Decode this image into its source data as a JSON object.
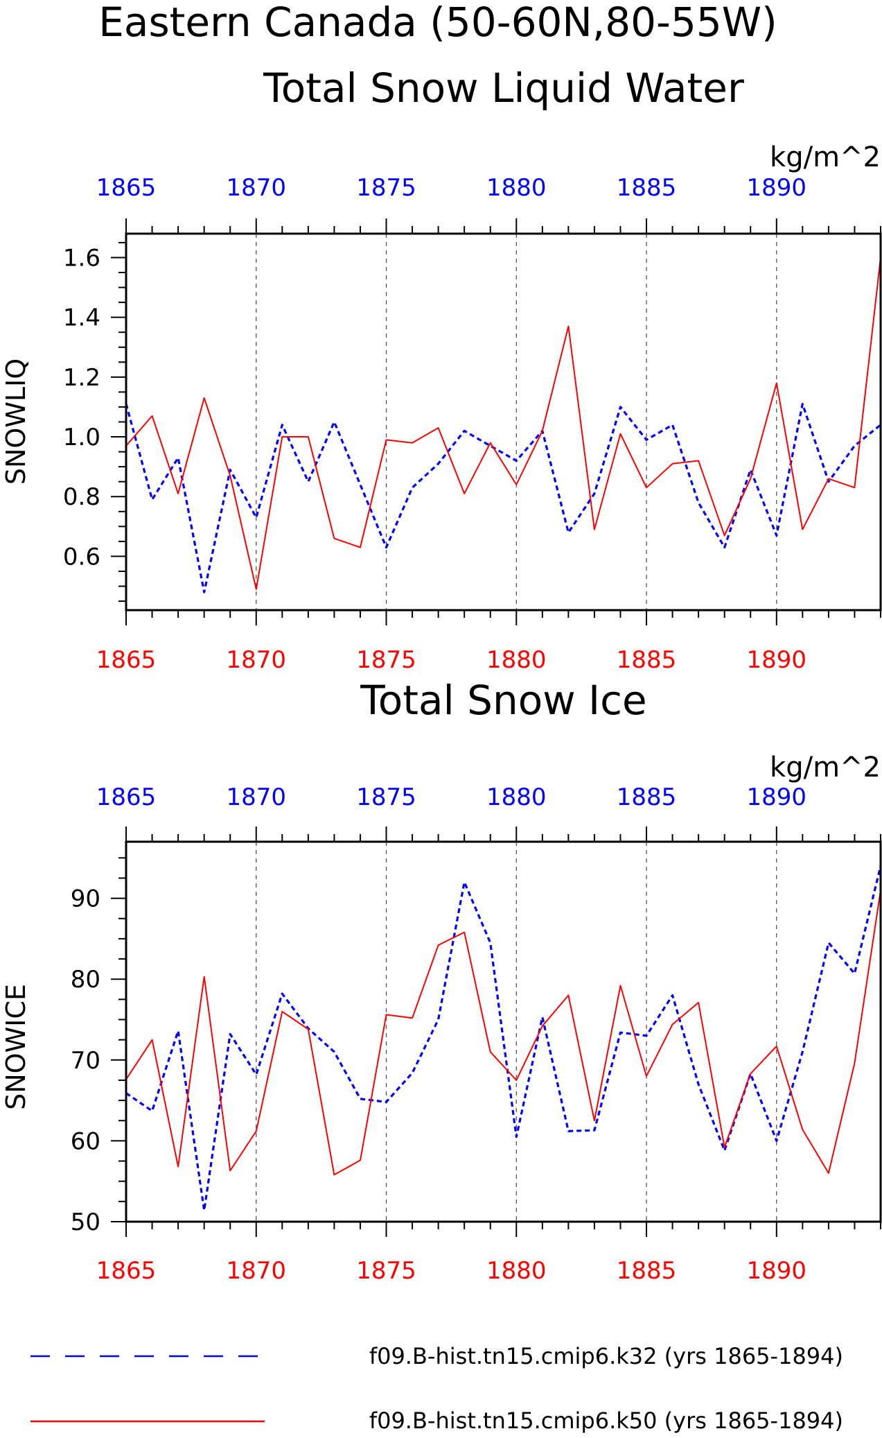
{
  "title": {
    "line1": "Eastern Canada (50-60N,80-55W)",
    "line2": "Total Snow Liquid Water"
  },
  "colors": {
    "k32": "#0000ff",
    "k50": "#ff0000",
    "axis": "#000000",
    "grid": "#555555"
  },
  "legend": [
    {
      "label": "f09.B-hist.tn15.cmip6.k32 (yrs 1865-1894)",
      "style": "dashed",
      "color": "#0000ff"
    },
    {
      "label": "f09.B-hist.tn15.cmip6.k50 (yrs 1865-1894)",
      "style": "solid",
      "color": "#ff0000"
    }
  ],
  "chart_data": [
    {
      "type": "line",
      "title": "",
      "ylabel": "SNOWLIQ",
      "units": "kg/m^2",
      "xlim": [
        1865,
        1894
      ],
      "ylim": [
        0.42,
        1.68
      ],
      "x_ticks": [
        1865,
        1870,
        1875,
        1880,
        1885,
        1890
      ],
      "y_ticks": [
        0.6,
        0.8,
        1.0,
        1.2,
        1.4,
        1.6
      ],
      "y_tick_labels": [
        "0.6",
        "0.8",
        "1.0",
        "1.2",
        "1.4",
        "1.6"
      ],
      "grid": "vertical dashed at major x ticks",
      "x": [
        1865,
        1866,
        1867,
        1868,
        1869,
        1870,
        1871,
        1872,
        1873,
        1874,
        1875,
        1876,
        1877,
        1878,
        1879,
        1880,
        1881,
        1882,
        1883,
        1884,
        1885,
        1886,
        1887,
        1888,
        1889,
        1890,
        1891,
        1892,
        1893,
        1894
      ],
      "series": [
        {
          "name": "f09.B-hist.tn15.cmip6.k32",
          "color": "#0000ff",
          "style": "dashed",
          "values": [
            1.11,
            0.79,
            0.93,
            0.48,
            0.89,
            0.73,
            1.04,
            0.85,
            1.05,
            0.84,
            0.63,
            0.83,
            0.91,
            1.02,
            0.97,
            0.92,
            1.02,
            0.68,
            0.81,
            1.1,
            0.99,
            1.04,
            0.78,
            0.63,
            0.89,
            0.67,
            1.11,
            0.85,
            0.97,
            1.04
          ]
        },
        {
          "name": "f09.B-hist.tn15.cmip6.k50",
          "color": "#ff0000",
          "style": "solid",
          "values": [
            0.97,
            1.07,
            0.81,
            1.13,
            0.87,
            0.49,
            1.0,
            1.0,
            0.66,
            0.63,
            0.99,
            0.98,
            1.03,
            0.81,
            0.98,
            0.84,
            1.02,
            1.37,
            0.69,
            1.01,
            0.83,
            0.91,
            0.92,
            0.67,
            0.86,
            1.18,
            0.69,
            0.86,
            0.83,
            1.6
          ]
        }
      ]
    },
    {
      "type": "line",
      "title": "Total Snow Ice",
      "ylabel": "SNOWICE",
      "units": "kg/m^2",
      "xlim": [
        1865,
        1894
      ],
      "ylim": [
        50,
        97
      ],
      "x_ticks": [
        1865,
        1870,
        1875,
        1880,
        1885,
        1890
      ],
      "y_ticks": [
        50,
        60,
        70,
        80,
        90
      ],
      "y_tick_labels": [
        "50",
        "60",
        "70",
        "80",
        "90"
      ],
      "grid": "vertical dashed at major x ticks",
      "x": [
        1865,
        1866,
        1867,
        1868,
        1869,
        1870,
        1871,
        1872,
        1873,
        1874,
        1875,
        1876,
        1877,
        1878,
        1879,
        1880,
        1881,
        1882,
        1883,
        1884,
        1885,
        1886,
        1887,
        1888,
        1889,
        1890,
        1891,
        1892,
        1893,
        1894
      ],
      "series": [
        {
          "name": "f09.B-hist.tn15.cmip6.k32",
          "color": "#0000ff",
          "style": "dashed",
          "values": [
            65.9,
            63.7,
            73.6,
            51.4,
            73.2,
            68.2,
            78.2,
            73.9,
            71.0,
            65.2,
            64.8,
            68.4,
            75.0,
            92.0,
            84.5,
            60.5,
            75.3,
            61.2,
            61.3,
            73.4,
            73.0,
            78.0,
            67.0,
            58.8,
            68.3,
            60.0,
            71.0,
            84.5,
            80.7,
            94.0
          ]
        },
        {
          "name": "f09.B-hist.tn15.cmip6.k50",
          "color": "#ff0000",
          "style": "solid",
          "values": [
            67.6,
            72.5,
            56.8,
            80.3,
            56.3,
            61.2,
            76.0,
            73.8,
            55.8,
            57.6,
            75.6,
            75.2,
            84.2,
            85.8,
            71.0,
            67.5,
            74.2,
            78.0,
            62.5,
            79.2,
            68.0,
            74.4,
            77.1,
            59.2,
            68.3,
            71.7,
            61.4,
            56.0,
            69.6,
            91.0
          ]
        }
      ]
    }
  ]
}
